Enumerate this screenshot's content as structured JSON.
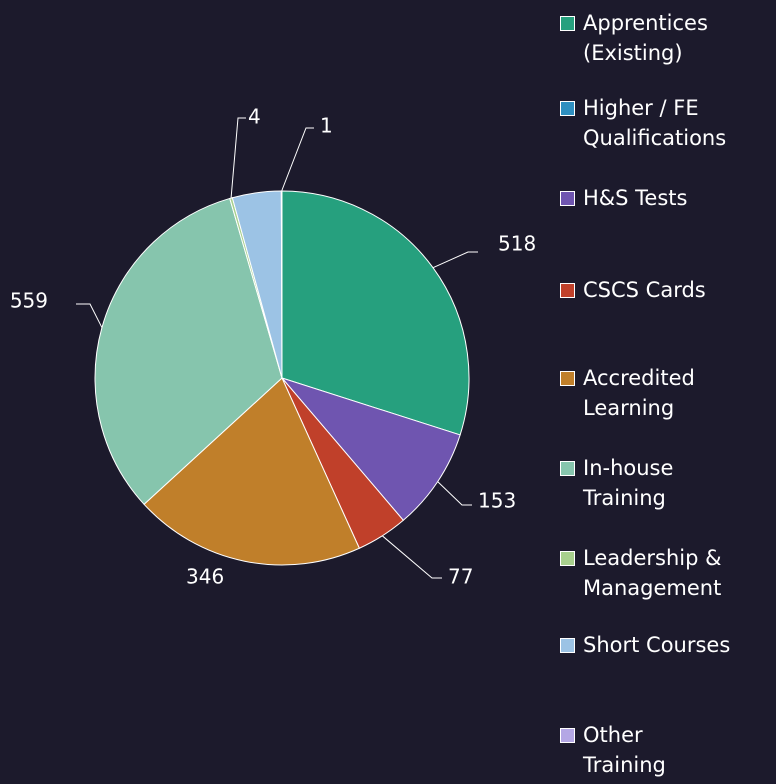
{
  "chart_data": {
    "type": "pie",
    "categories": [
      "Apprentices\n(Existing)",
      "Higher / FE\nQualifications",
      "H&S Tests",
      "CSCS Cards",
      "Accredited\nLearning",
      "In-house\nTraining",
      "Leadership &\nManagement",
      "Short Courses",
      "Other\nTraining"
    ],
    "values": [
      518,
      0,
      153,
      77,
      346,
      559,
      4,
      73,
      1
    ],
    "value_labels": [
      "518",
      null,
      "153",
      "77",
      "346",
      "559",
      "4",
      null,
      "1"
    ],
    "colors": [
      "#26a07e",
      "#2e8fc0",
      "#6f55b0",
      "#c0402a",
      "#c07f2a",
      "#86c5ad",
      "#a8d08d",
      "#9cc3e5",
      "#b4a7e5"
    ],
    "legend": "right"
  }
}
